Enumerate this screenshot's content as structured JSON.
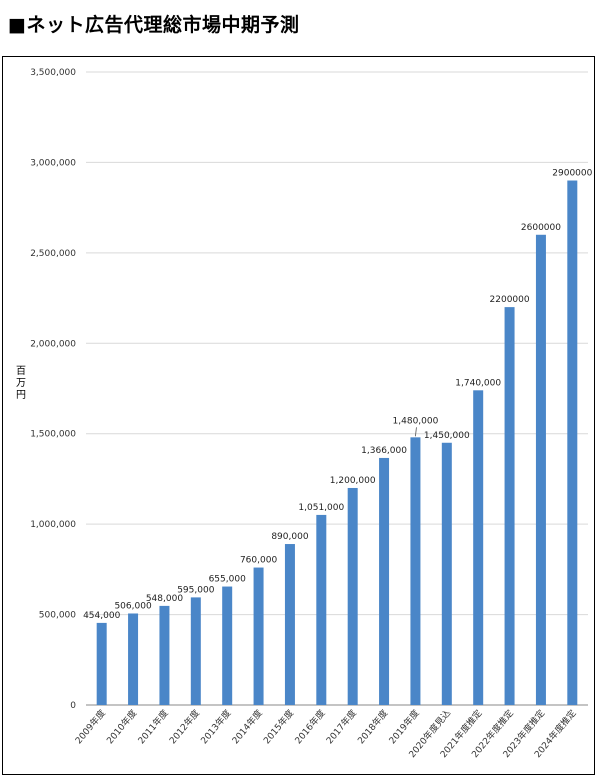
{
  "title": "■ネット広告代理総市場中期予測",
  "chart_data": {
    "type": "bar",
    "title": "■ネット広告代理総市場中期予測",
    "xlabel": "",
    "ylabel": "百万円",
    "ylim": [
      0,
      3500000
    ],
    "yticks": [
      0,
      500000,
      1000000,
      1500000,
      2000000,
      2500000,
      3000000,
      3500000
    ],
    "ytick_labels": [
      "0",
      "500,000",
      "1,000,000",
      "1,500,000",
      "2,000,000",
      "2,500,000",
      "3,000,000",
      "3,500,000"
    ],
    "categories": [
      "2009年度",
      "2010年度",
      "2011年度",
      "2012年度",
      "2013年度",
      "2014年度",
      "2015年度",
      "2016年度",
      "2017年度",
      "2018年度",
      "2019年度",
      "2020年度見込",
      "2021年度推定",
      "2022年度推定",
      "2023年度推定",
      "2024年度推定"
    ],
    "values": [
      454000,
      506000,
      548000,
      595000,
      655000,
      760000,
      890000,
      1051000,
      1200000,
      1366000,
      1480000,
      1450000,
      1740000,
      2200000,
      2600000,
      2900000
    ],
    "data_labels": [
      "454,000",
      "506,000",
      "548,000",
      "595,000",
      "655,000",
      "760,000",
      "890,000",
      "1,051,000",
      "1,200,000",
      "1,366,000",
      "1,480,000",
      "1,450,000",
      "1,740,000",
      "2200000",
      "2600000",
      "2900000"
    ],
    "bar_color": "#4a86c8",
    "grid": true
  }
}
